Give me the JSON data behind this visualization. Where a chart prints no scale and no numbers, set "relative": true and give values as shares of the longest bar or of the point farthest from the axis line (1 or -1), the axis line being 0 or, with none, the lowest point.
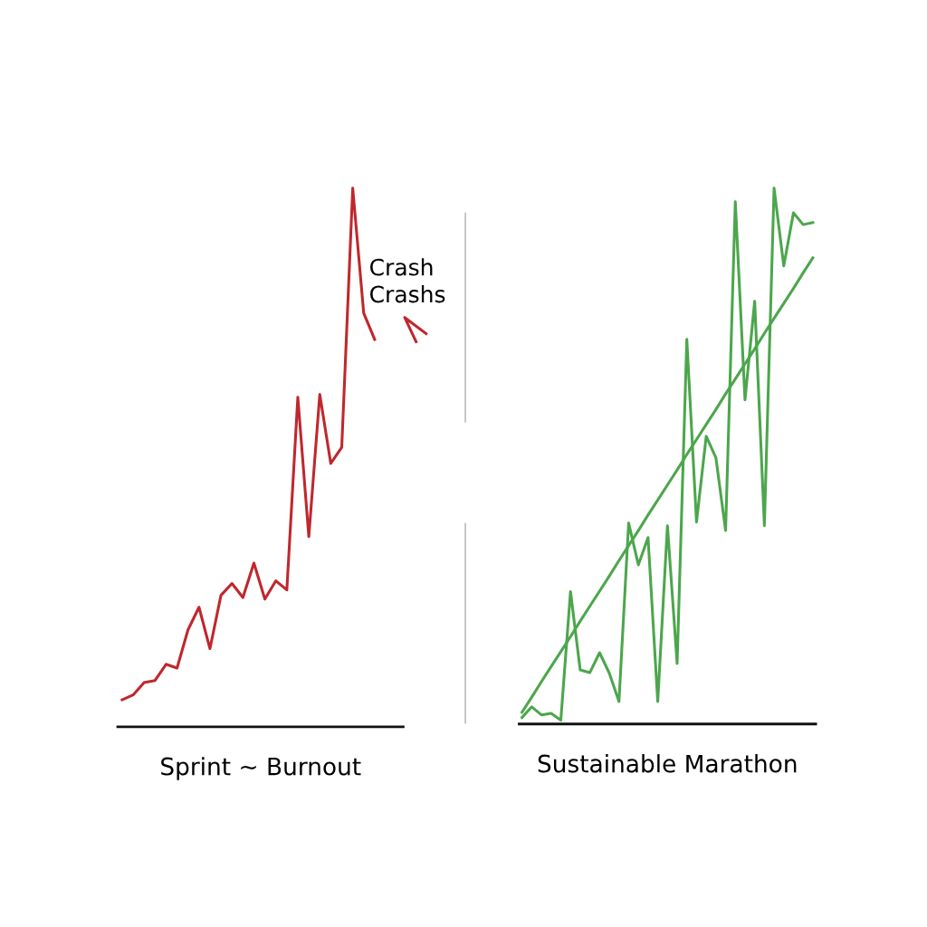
{
  "chart_data": [
    {
      "type": "line",
      "relative": true,
      "xlabel": "Sprint ~ Burnout",
      "tick_labels": false,
      "annotations": [
        "Crash\nCrashs"
      ],
      "categories": [
        null,
        null,
        null,
        null,
        null,
        null,
        null,
        null,
        null,
        null,
        null,
        null,
        null,
        null,
        null,
        null,
        null,
        null,
        null,
        null,
        null,
        null,
        null,
        null
      ],
      "series": [
        {
          "color": "#c0272d",
          "values": [
            0.05,
            0.059,
            0.082,
            0.086,
            0.116,
            0.109,
            0.18,
            0.222,
            0.145,
            0.244,
            0.266,
            0.24,
            0.304,
            0.237,
            0.271,
            0.254,
            0.612,
            0.353,
            0.617,
            0.489,
            0.519,
            1,
            0.768,
            0.719
          ]
        }
      ]
    },
    {
      "type": "line",
      "relative": true,
      "xlabel": "Sustainable Marathon",
      "tick_labels": false,
      "categories": [
        null,
        null,
        null,
        null,
        null,
        null,
        null,
        null,
        null,
        null,
        null,
        null,
        null,
        null,
        null,
        null,
        null,
        null,
        null,
        null,
        null,
        null,
        null,
        null,
        null,
        null,
        null,
        null,
        null,
        null,
        null
      ],
      "series": [
        {
          "color": "#4ca64c",
          "values": [
            0.012,
            0.032,
            0.017,
            0.02,
            0.007,
            0.247,
            0.101,
            0.096,
            0.133,
            0.095,
            0.042,
            0.375,
            0.297,
            0.348,
            0.042,
            0.37,
            0.113,
            0.718,
            0.377,
            0.537,
            0.497,
            0.361,
            0.975,
            0.605,
            0.789,
            0.37,
            1,
            0.855,
            0.954,
            0.932,
            0.936
          ]
        },
        {
          "color": "#4ca64c",
          "values": [
            0.022,
            0.05,
            0.079,
            0.107,
            0.135,
            0.163,
            0.192,
            0.22,
            0.248,
            0.276,
            0.305,
            0.333,
            0.361,
            0.39,
            0.418,
            0.446,
            0.474,
            0.503,
            0.531,
            0.559,
            0.587,
            0.616,
            0.644,
            0.672,
            0.7,
            0.729,
            0.757,
            0.785,
            0.813,
            0.842,
            0.87
          ]
        }
      ]
    }
  ]
}
